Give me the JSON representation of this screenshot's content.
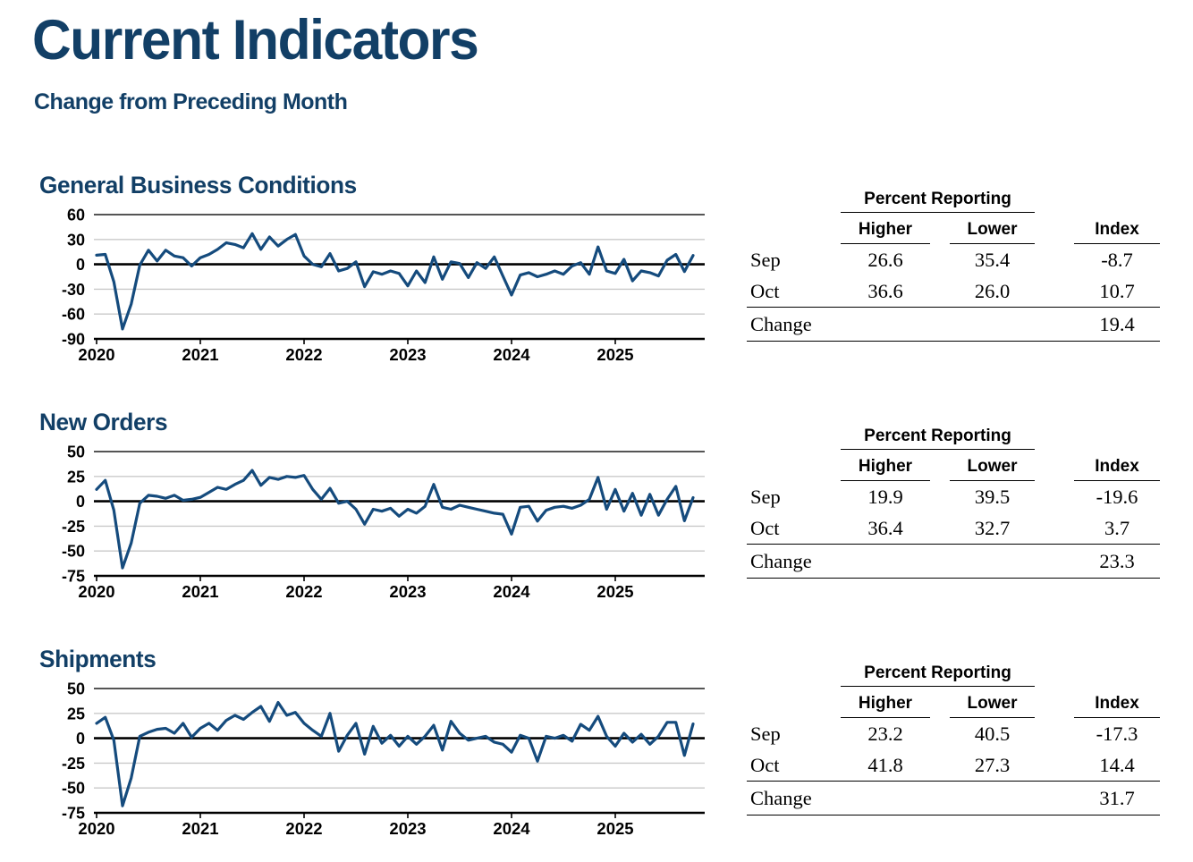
{
  "page": {
    "title": "Current Indicators",
    "subtitle": "Change from Preceding Month"
  },
  "colors": {
    "heading_blue": "#123f66",
    "line_blue": "#154b7d",
    "gridline_gray": "#c9c9c9",
    "top_border_gray": "#3d3d3d",
    "axis_black": "#000000"
  },
  "table_labels": {
    "group": "Percent Reporting",
    "higher": "Higher",
    "lower": "Lower",
    "index": "Index"
  },
  "sections": [
    {
      "title": "General Business Conditions",
      "table": {
        "rows": [
          {
            "label": "Sep",
            "higher": "26.6",
            "lower": "35.4",
            "index": "-8.7"
          },
          {
            "label": "Oct",
            "higher": "36.6",
            "lower": "26.0",
            "index": "10.7"
          },
          {
            "label": "Change",
            "higher": "",
            "lower": "",
            "index": "19.4"
          }
        ]
      }
    },
    {
      "title": "New Orders",
      "table": {
        "rows": [
          {
            "label": "Sep",
            "higher": "19.9",
            "lower": "39.5",
            "index": "-19.6"
          },
          {
            "label": "Oct",
            "higher": "36.4",
            "lower": "32.7",
            "index": "3.7"
          },
          {
            "label": "Change",
            "higher": "",
            "lower": "",
            "index": "23.3"
          }
        ]
      }
    },
    {
      "title": "Shipments",
      "table": {
        "rows": [
          {
            "label": "Sep",
            "higher": "23.2",
            "lower": "40.5",
            "index": "-17.3"
          },
          {
            "label": "Oct",
            "higher": "41.8",
            "lower": "27.3",
            "index": "14.4"
          },
          {
            "label": "Change",
            "higher": "",
            "lower": "",
            "index": "31.7"
          }
        ]
      }
    }
  ],
  "chart_data": [
    {
      "type": "line",
      "title": "General Business Conditions",
      "frequency": "monthly",
      "x_tick_labels": [
        "2020",
        "2021",
        "2022",
        "2023",
        "2024",
        "2025"
      ],
      "x_range": [
        "Jan 2020",
        "Oct 2025"
      ],
      "ylim": [
        -90,
        60
      ],
      "yticks": [
        60,
        30,
        0,
        -30,
        -60,
        -90
      ],
      "grid": "horizontal",
      "legend": "none",
      "line_color": "#154b7d",
      "series": [
        {
          "name": "General Business Conditions (diffusion index)",
          "values": [
            11,
            12,
            -21,
            -78,
            -48,
            -1,
            17,
            4,
            17,
            10,
            8,
            -2,
            8,
            12,
            18,
            26,
            24,
            20,
            37,
            18,
            33,
            22,
            30,
            36,
            10,
            0,
            -3,
            13,
            -8,
            -5,
            3,
            -27,
            -9,
            -12,
            -8,
            -11,
            -26,
            -8,
            -22,
            9,
            -18,
            3,
            1,
            -16,
            2,
            -5,
            9,
            -14,
            -37,
            -13,
            -10,
            -15,
            -12,
            -8,
            -12,
            -2,
            2,
            -12,
            21,
            -8,
            -11,
            6,
            -20,
            -8,
            -10,
            -14,
            5,
            12,
            -8.7,
            10.7
          ]
        }
      ]
    },
    {
      "type": "line",
      "title": "New Orders",
      "frequency": "monthly",
      "x_tick_labels": [
        "2020",
        "2021",
        "2022",
        "2023",
        "2024",
        "2025"
      ],
      "x_range": [
        "Jan 2020",
        "Oct 2025"
      ],
      "ylim": [
        -75,
        50
      ],
      "yticks": [
        50,
        25,
        0,
        -25,
        -50,
        -75
      ],
      "grid": "horizontal",
      "legend": "none",
      "line_color": "#154b7d",
      "series": [
        {
          "name": "New Orders (diffusion index)",
          "values": [
            12,
            21,
            -9,
            -67,
            -42,
            -2,
            6,
            5,
            3,
            6,
            1,
            2,
            4,
            9,
            14,
            12,
            17,
            21,
            31,
            16,
            24,
            22,
            25,
            24,
            26,
            12,
            2,
            13,
            -2,
            0,
            -8,
            -23,
            -8,
            -10,
            -7,
            -15,
            -8,
            -12,
            -5,
            17,
            -6,
            -8,
            -4,
            -6,
            -8,
            -10,
            -12,
            -13,
            -33,
            -6,
            -5,
            -20,
            -9,
            -6,
            -5,
            -7,
            -4,
            2,
            24,
            -8,
            12,
            -10,
            8,
            -14,
            7,
            -14,
            2,
            15,
            -19.6,
            3.7
          ]
        }
      ]
    },
    {
      "type": "line",
      "title": "Shipments",
      "frequency": "monthly",
      "x_tick_labels": [
        "2020",
        "2021",
        "2022",
        "2023",
        "2024",
        "2025"
      ],
      "x_range": [
        "Jan 2020",
        "Oct 2025"
      ],
      "ylim": [
        -75,
        50
      ],
      "yticks": [
        50,
        25,
        0,
        -25,
        -50,
        -75
      ],
      "grid": "horizontal",
      "legend": "none",
      "line_color": "#154b7d",
      "series": [
        {
          "name": "Shipments (diffusion index)",
          "values": [
            15,
            21,
            -2,
            -68,
            -40,
            2,
            6,
            9,
            10,
            5,
            15,
            1,
            10,
            15,
            8,
            18,
            23,
            19,
            26,
            32,
            17,
            36,
            23,
            26,
            15,
            8,
            2,
            25,
            -13,
            3,
            15,
            -16,
            12,
            -5,
            3,
            -8,
            2,
            -6,
            2,
            13,
            -12,
            17,
            5,
            -2,
            0,
            2,
            -4,
            -6,
            -14,
            3,
            0,
            -23,
            2,
            0,
            3,
            -3,
            14,
            8,
            22,
            2,
            -8,
            5,
            -4,
            4,
            -6,
            2,
            16,
            16,
            -17.3,
            14.4
          ]
        }
      ]
    }
  ]
}
